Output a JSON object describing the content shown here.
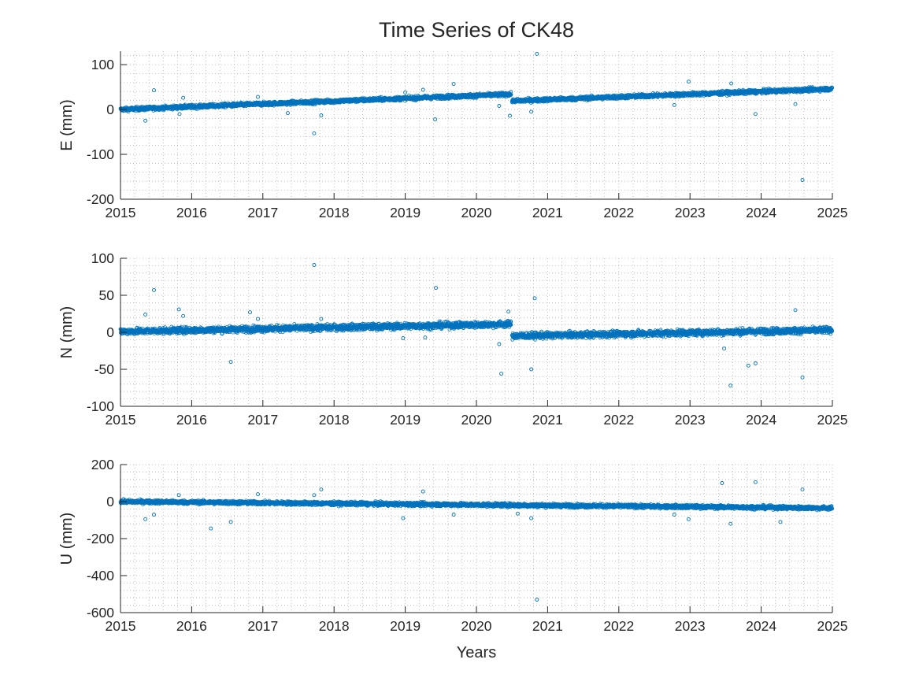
{
  "figure_title": "Time Series of CK48",
  "colors": {
    "marker": "#0072BD",
    "axes": "#262626",
    "grid": "#b0b0b0"
  },
  "chart_data": [
    {
      "type": "scatter",
      "key": "E",
      "ylabel": "E (mm)",
      "xlabel": "",
      "xlim": [
        2015,
        2025
      ],
      "ylim": [
        -200,
        130
      ],
      "xticks": [
        2015,
        2016,
        2017,
        2018,
        2019,
        2020,
        2021,
        2022,
        2023,
        2024,
        2025
      ],
      "yticks": [
        -200,
        -100,
        0,
        100
      ],
      "grid": "minor dotted",
      "trend": [
        {
          "x0": 2015.0,
          "x1": 2020.49,
          "y0": 0,
          "y1": 34,
          "noise": 3
        },
        {
          "x0": 2020.5,
          "x1": 2025.0,
          "y0": 19,
          "y1": 46,
          "noise": 3
        }
      ],
      "outliers": [
        {
          "x": 2015.35,
          "y": -25
        },
        {
          "x": 2015.47,
          "y": 43
        },
        {
          "x": 2015.83,
          "y": -10
        },
        {
          "x": 2015.88,
          "y": 26
        },
        {
          "x": 2016.93,
          "y": 28
        },
        {
          "x": 2017.35,
          "y": -8
        },
        {
          "x": 2017.72,
          "y": -53
        },
        {
          "x": 2017.82,
          "y": -13
        },
        {
          "x": 2019.0,
          "y": 38
        },
        {
          "x": 2019.25,
          "y": 44
        },
        {
          "x": 2019.42,
          "y": -22
        },
        {
          "x": 2019.68,
          "y": 57
        },
        {
          "x": 2020.32,
          "y": 8
        },
        {
          "x": 2020.47,
          "y": -14
        },
        {
          "x": 2020.77,
          "y": -5
        },
        {
          "x": 2020.85,
          "y": 124
        },
        {
          "x": 2022.78,
          "y": 10
        },
        {
          "x": 2022.98,
          "y": 62
        },
        {
          "x": 2023.58,
          "y": 58
        },
        {
          "x": 2023.92,
          "y": -10
        },
        {
          "x": 2024.48,
          "y": 12
        },
        {
          "x": 2024.58,
          "y": -157
        }
      ]
    },
    {
      "type": "scatter",
      "key": "N",
      "ylabel": "N (mm)",
      "xlabel": "",
      "xlim": [
        2015,
        2025
      ],
      "ylim": [
        -100,
        100
      ],
      "xticks": [
        2015,
        2016,
        2017,
        2018,
        2019,
        2020,
        2021,
        2022,
        2023,
        2024,
        2025
      ],
      "yticks": [
        -100,
        -50,
        0,
        50,
        100
      ],
      "grid": "minor dotted",
      "trend": [
        {
          "x0": 2015.0,
          "x1": 2020.49,
          "y0": 1,
          "y1": 11,
          "noise": 3
        },
        {
          "x0": 2020.5,
          "x1": 2025.0,
          "y0": -5,
          "y1": 3,
          "noise": 3
        }
      ],
      "outliers": [
        {
          "x": 2015.35,
          "y": 24
        },
        {
          "x": 2015.47,
          "y": 57
        },
        {
          "x": 2015.82,
          "y": 31
        },
        {
          "x": 2015.88,
          "y": 22
        },
        {
          "x": 2016.55,
          "y": -40
        },
        {
          "x": 2016.82,
          "y": 27
        },
        {
          "x": 2016.93,
          "y": 18
        },
        {
          "x": 2017.72,
          "y": 91
        },
        {
          "x": 2017.82,
          "y": 18
        },
        {
          "x": 2018.97,
          "y": -8
        },
        {
          "x": 2019.28,
          "y": -7
        },
        {
          "x": 2019.43,
          "y": 60
        },
        {
          "x": 2020.32,
          "y": -16
        },
        {
          "x": 2020.35,
          "y": -56
        },
        {
          "x": 2020.45,
          "y": 28
        },
        {
          "x": 2020.77,
          "y": -50
        },
        {
          "x": 2020.82,
          "y": 46
        },
        {
          "x": 2023.48,
          "y": -22
        },
        {
          "x": 2023.57,
          "y": -72
        },
        {
          "x": 2023.82,
          "y": -45
        },
        {
          "x": 2023.92,
          "y": -42
        },
        {
          "x": 2024.48,
          "y": 30
        },
        {
          "x": 2024.58,
          "y": -61
        }
      ]
    },
    {
      "type": "scatter",
      "key": "U",
      "ylabel": "U (mm)",
      "xlabel": "Years",
      "xlim": [
        2015,
        2025
      ],
      "ylim": [
        -600,
        200
      ],
      "xticks": [
        2015,
        2016,
        2017,
        2018,
        2019,
        2020,
        2021,
        2022,
        2023,
        2024,
        2025
      ],
      "yticks": [
        -600,
        -400,
        -200,
        0,
        200
      ],
      "grid": "minor dotted",
      "trend": [
        {
          "x0": 2015.0,
          "x1": 2025.0,
          "y0": 0,
          "y1": -35,
          "noise": 7
        }
      ],
      "outliers": [
        {
          "x": 2015.35,
          "y": -95
        },
        {
          "x": 2015.47,
          "y": -70
        },
        {
          "x": 2015.82,
          "y": 35
        },
        {
          "x": 2016.27,
          "y": -145
        },
        {
          "x": 2016.55,
          "y": -110
        },
        {
          "x": 2016.93,
          "y": 40
        },
        {
          "x": 2017.72,
          "y": 35
        },
        {
          "x": 2017.82,
          "y": 65
        },
        {
          "x": 2018.97,
          "y": -90
        },
        {
          "x": 2019.25,
          "y": 55
        },
        {
          "x": 2019.68,
          "y": -70
        },
        {
          "x": 2020.58,
          "y": -65
        },
        {
          "x": 2020.77,
          "y": -90
        },
        {
          "x": 2020.85,
          "y": -530
        },
        {
          "x": 2022.78,
          "y": -70
        },
        {
          "x": 2022.98,
          "y": -95
        },
        {
          "x": 2023.45,
          "y": 100
        },
        {
          "x": 2023.57,
          "y": -120
        },
        {
          "x": 2023.92,
          "y": 105
        },
        {
          "x": 2024.27,
          "y": -110
        },
        {
          "x": 2024.58,
          "y": 65
        }
      ]
    }
  ]
}
